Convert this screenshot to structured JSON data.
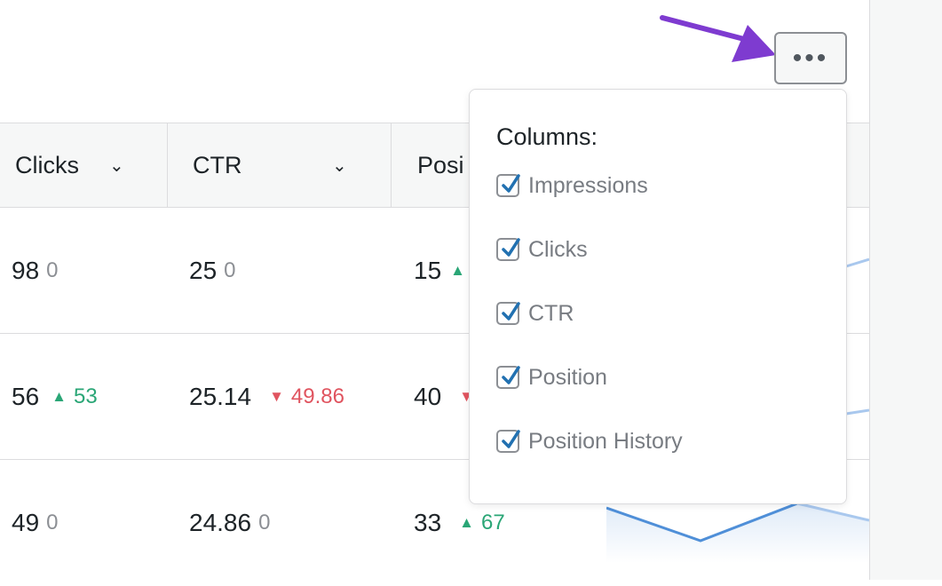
{
  "columns": {
    "clicks": "Clicks",
    "ctr": "CTR",
    "position": "Posi"
  },
  "rows": [
    {
      "clicks": "98",
      "clicks_delta": "0",
      "clicks_trend": "neutral",
      "ctr": "25",
      "ctr_delta": "0",
      "ctr_trend": "neutral",
      "position": "15",
      "position_delta": "",
      "position_trend": "up"
    },
    {
      "clicks": "56",
      "clicks_delta": "53",
      "clicks_trend": "up",
      "ctr": "25.14",
      "ctr_delta": "49.86",
      "ctr_trend": "down",
      "position": "40",
      "position_delta": "",
      "position_trend": "down"
    },
    {
      "clicks": "49",
      "clicks_delta": "0",
      "clicks_trend": "neutral",
      "ctr": "24.86",
      "ctr_delta": "0",
      "ctr_trend": "neutral",
      "position": "33",
      "position_delta": "67",
      "position_trend": "up"
    }
  ],
  "more_button": {
    "label": "•••"
  },
  "columns_menu": {
    "title": "Columns:",
    "options": [
      {
        "label": "Impressions",
        "checked": true
      },
      {
        "label": "Clicks",
        "checked": true
      },
      {
        "label": "CTR",
        "checked": true
      },
      {
        "label": "Position",
        "checked": true
      },
      {
        "label": "Position History",
        "checked": true
      }
    ]
  },
  "colors": {
    "up": "#2aa676",
    "down": "#e0545f",
    "neutral": "#8c8f94",
    "checkbox_check": "#2271b1",
    "annotation_arrow": "#7e3bd0",
    "chart_line": "#4f8fd8"
  },
  "icons": {
    "sort": "chevron-down-icon",
    "trend_up": "triangle-up-icon",
    "trend_down": "triangle-down-icon",
    "checkbox": "checkmark-icon"
  }
}
